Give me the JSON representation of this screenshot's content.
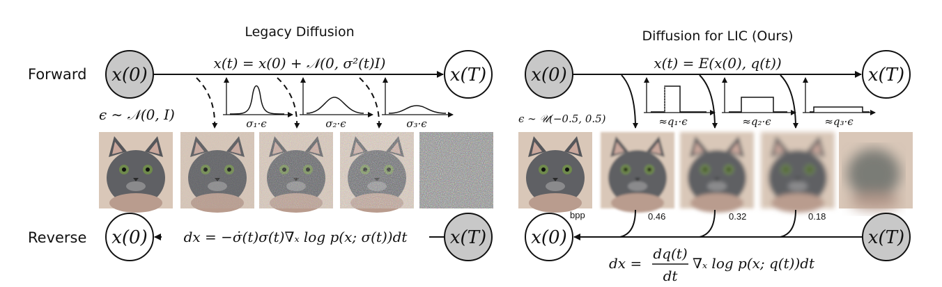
{
  "left": {
    "title": "Legacy Diffusion",
    "forward_label": "Forward",
    "reverse_label": "Reverse",
    "node_start": "x(0)",
    "node_end": "x(T)",
    "forward_eq": "x(t) = x(0) + 𝒩(0, σ²(t)I)",
    "noise_label": "ϵ ∼ 𝒩(0, I)",
    "dist_labels": [
      "σ₁·ϵ",
      "σ₂·ϵ",
      "σ₃·ϵ"
    ],
    "reverse_eq": "dx = −σ̇(t)σ(t)∇ₓ log p(x; σ(t))dt"
  },
  "right": {
    "title": "Diffusion for LIC (Ours)",
    "node_start": "x(0)",
    "node_end": "x(T)",
    "forward_eq": "x(t) = E(x(0), q(t))",
    "noise_label": "ϵ ∼ 𝒰(−0.5, 0.5)",
    "dist_labels": [
      "≈q₁·ϵ",
      "≈q₂·ϵ",
      "≈q₃·ϵ"
    ],
    "bpp_label": "bpp",
    "bpp_values": [
      "0.46",
      "0.32",
      "0.18"
    ],
    "reverse_eq_lhs": "dx =",
    "reverse_eq_num": "dq(t)",
    "reverse_eq_den": "dt",
    "reverse_eq_rhs": "∇ₓ log p(x; q(t))dt"
  },
  "colors": {
    "node_fill": "#c8c8c8",
    "stroke": "#111111"
  }
}
